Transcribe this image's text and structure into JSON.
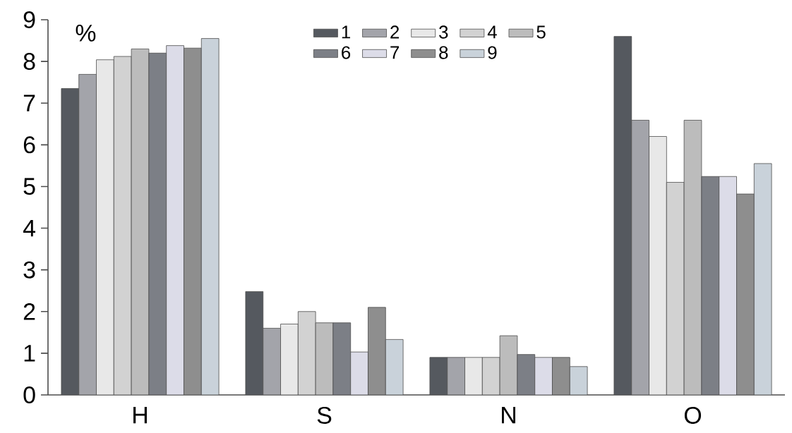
{
  "chart_data": {
    "type": "bar",
    "ylabel": "%",
    "categories": [
      "H",
      "S",
      "N",
      "O"
    ],
    "ylim": [
      0,
      9
    ],
    "yticks": [
      0,
      1,
      2,
      3,
      4,
      5,
      6,
      7,
      8,
      9
    ],
    "legend": "top",
    "series": [
      {
        "name": "1",
        "color": "#55595f",
        "values": [
          7.35,
          2.48,
          0.9,
          8.6
        ]
      },
      {
        "name": "2",
        "color": "#a3a4aa",
        "values": [
          7.69,
          1.6,
          0.9,
          6.59
        ]
      },
      {
        "name": "3",
        "color": "#e8e8e8",
        "values": [
          8.04,
          1.7,
          0.9,
          6.2
        ]
      },
      {
        "name": "4",
        "color": "#d2d2d2",
        "values": [
          8.12,
          2.0,
          0.9,
          5.1
        ]
      },
      {
        "name": "5",
        "color": "#bcbcbc",
        "values": [
          8.3,
          1.73,
          1.42,
          6.59
        ]
      },
      {
        "name": "6",
        "color": "#7c7f86",
        "values": [
          8.2,
          1.73,
          0.97,
          5.24
        ]
      },
      {
        "name": "7",
        "color": "#dcdce8",
        "values": [
          8.38,
          1.03,
          0.9,
          5.24
        ]
      },
      {
        "name": "8",
        "color": "#8e8e8e",
        "values": [
          8.32,
          2.1,
          0.9,
          4.82
        ]
      },
      {
        "name": "9",
        "color": "#c9d2da",
        "values": [
          8.55,
          1.33,
          0.68,
          5.55
        ]
      }
    ]
  }
}
